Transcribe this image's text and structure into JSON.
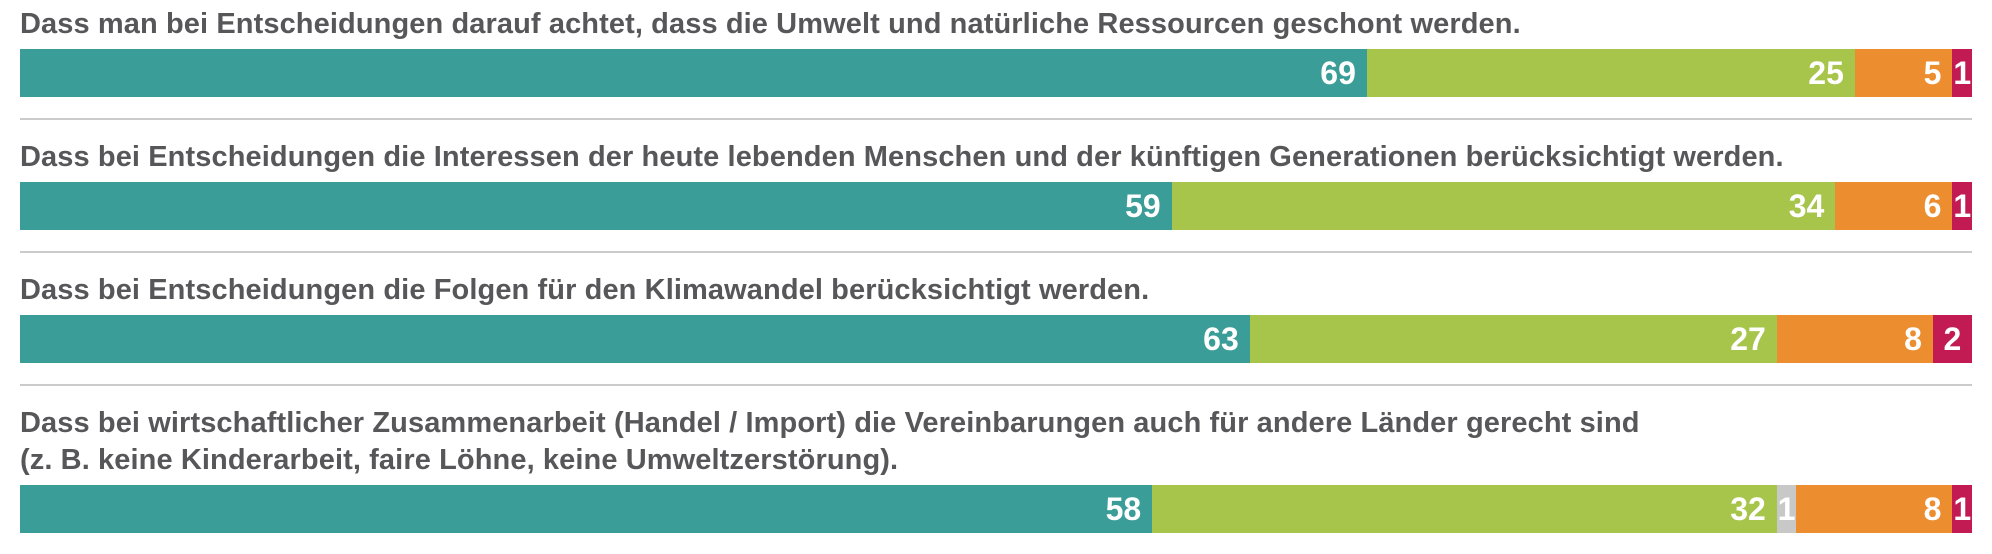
{
  "colors": {
    "teal": "#3A9D98",
    "green": "#A7C44B",
    "gray": "#C8C8C8",
    "orange": "#EC8D30",
    "crimson": "#C21A52",
    "label_text": "#57575A",
    "value_text": "#FFFFFF",
    "divider": "#CBCBCB",
    "background": "#FFFFFF"
  },
  "chart_data": {
    "type": "bar",
    "variant": "horizontal-stacked",
    "unit": "percent",
    "axis": {
      "min": 0,
      "max": 100,
      "ticks_visible": false
    },
    "grid": false,
    "legend_visible": false,
    "value_labels": "inside-right-aligned-white",
    "items": [
      {
        "label": "Dass man bei Entscheidungen darauf achtet, dass die Umwelt und natürliche Ressourcen geschont werden.",
        "segments": [
          {
            "value": 69,
            "color": "teal"
          },
          {
            "value": 25,
            "color": "green"
          },
          {
            "value": 5,
            "color": "orange"
          },
          {
            "value": 1,
            "color": "crimson"
          }
        ]
      },
      {
        "label": "Dass bei Entscheidungen die Interessen der heute lebenden Menschen und der künftigen Generationen berücksichtigt werden.",
        "segments": [
          {
            "value": 59,
            "color": "teal"
          },
          {
            "value": 34,
            "color": "green"
          },
          {
            "value": 6,
            "color": "orange"
          },
          {
            "value": 1,
            "color": "crimson"
          }
        ]
      },
      {
        "label": "Dass bei Entscheidungen die Folgen für den Klimawandel berücksichtigt werden.",
        "segments": [
          {
            "value": 63,
            "color": "teal"
          },
          {
            "value": 27,
            "color": "green"
          },
          {
            "value": 8,
            "color": "orange"
          },
          {
            "value": 2,
            "color": "crimson"
          }
        ]
      },
      {
        "label": "Dass bei wirtschaftlicher Zusammenarbeit (Handel / Import) die Vereinbarungen auch für andere Länder gerecht sind\n(z. B. keine Kinderarbeit, faire Löhne, keine Umweltzerstörung).",
        "segments": [
          {
            "value": 58,
            "color": "teal"
          },
          {
            "value": 32,
            "color": "green"
          },
          {
            "value": 1,
            "color": "gray"
          },
          {
            "value": 8,
            "color": "orange"
          },
          {
            "value": 1,
            "color": "crimson"
          }
        ]
      }
    ]
  }
}
